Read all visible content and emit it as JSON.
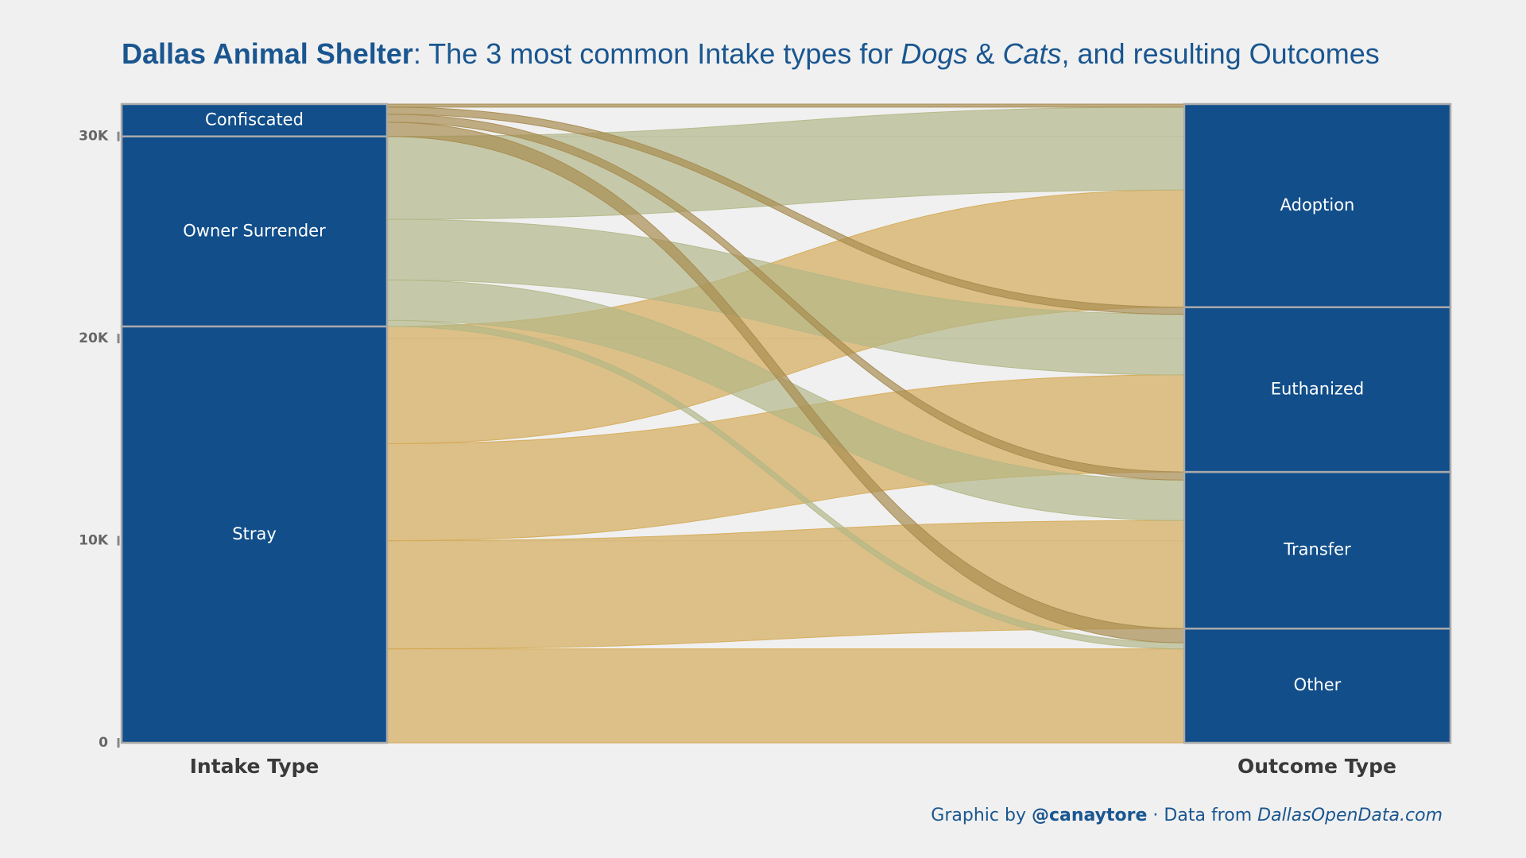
{
  "chart_data": {
    "type": "alluvial",
    "title_parts": [
      {
        "text": "Dallas Animal Shelter",
        "style": "bold"
      },
      {
        "text": ": The 3 most common Intake types for ",
        "style": "normal"
      },
      {
        "text": "Dogs",
        "style": "italic"
      },
      {
        "text": " & ",
        "style": "normal"
      },
      {
        "text": "Cats",
        "style": "italic"
      },
      {
        "text": ", and resulting Outcomes",
        "style": "normal"
      }
    ],
    "caption_parts": [
      {
        "text": "Graphic by ",
        "style": "normal"
      },
      {
        "text": "@canaytore",
        "style": "bold"
      },
      {
        "text": " · Data from ",
        "style": "normal"
      },
      {
        "text": "DallasOpenData.com",
        "style": "italic"
      }
    ],
    "left_axis_label": "Intake Type",
    "right_axis_label": "Outcome Type",
    "intake": [
      {
        "label": "Stray",
        "color": "#d4aa55"
      },
      {
        "label": "Owner Surrender",
        "color": "#b3b787"
      },
      {
        "label": "Confiscated",
        "color": "#a68a4e"
      }
    ],
    "outcome": [
      {
        "label": "Other"
      },
      {
        "label": "Transfer"
      },
      {
        "label": "Euthanized"
      },
      {
        "label": "Adoption"
      }
    ],
    "flows": [
      {
        "from": 0,
        "to": 0,
        "value": 4650
      },
      {
        "from": 0,
        "to": 1,
        "value": 5350
      },
      {
        "from": 0,
        "to": 2,
        "value": 4800
      },
      {
        "from": 0,
        "to": 3,
        "value": 5800
      },
      {
        "from": 1,
        "to": 0,
        "value": 300
      },
      {
        "from": 1,
        "to": 1,
        "value": 2000
      },
      {
        "from": 1,
        "to": 2,
        "value": 3000
      },
      {
        "from": 1,
        "to": 3,
        "value": 4100
      },
      {
        "from": 2,
        "to": 0,
        "value": 700
      },
      {
        "from": 2,
        "to": 1,
        "value": 400
      },
      {
        "from": 2,
        "to": 2,
        "value": 350
      },
      {
        "from": 2,
        "to": 3,
        "value": 150
      }
    ],
    "stratum_color": "#114e8a",
    "ylim": [
      0,
      31600
    ],
    "yticks": [
      0,
      {
        "value": 10000,
        "label": "10K"
      },
      {
        "value": 20000,
        "label": "20K"
      },
      {
        "value": 30000,
        "label": "30K"
      }
    ],
    "grid": true
  }
}
